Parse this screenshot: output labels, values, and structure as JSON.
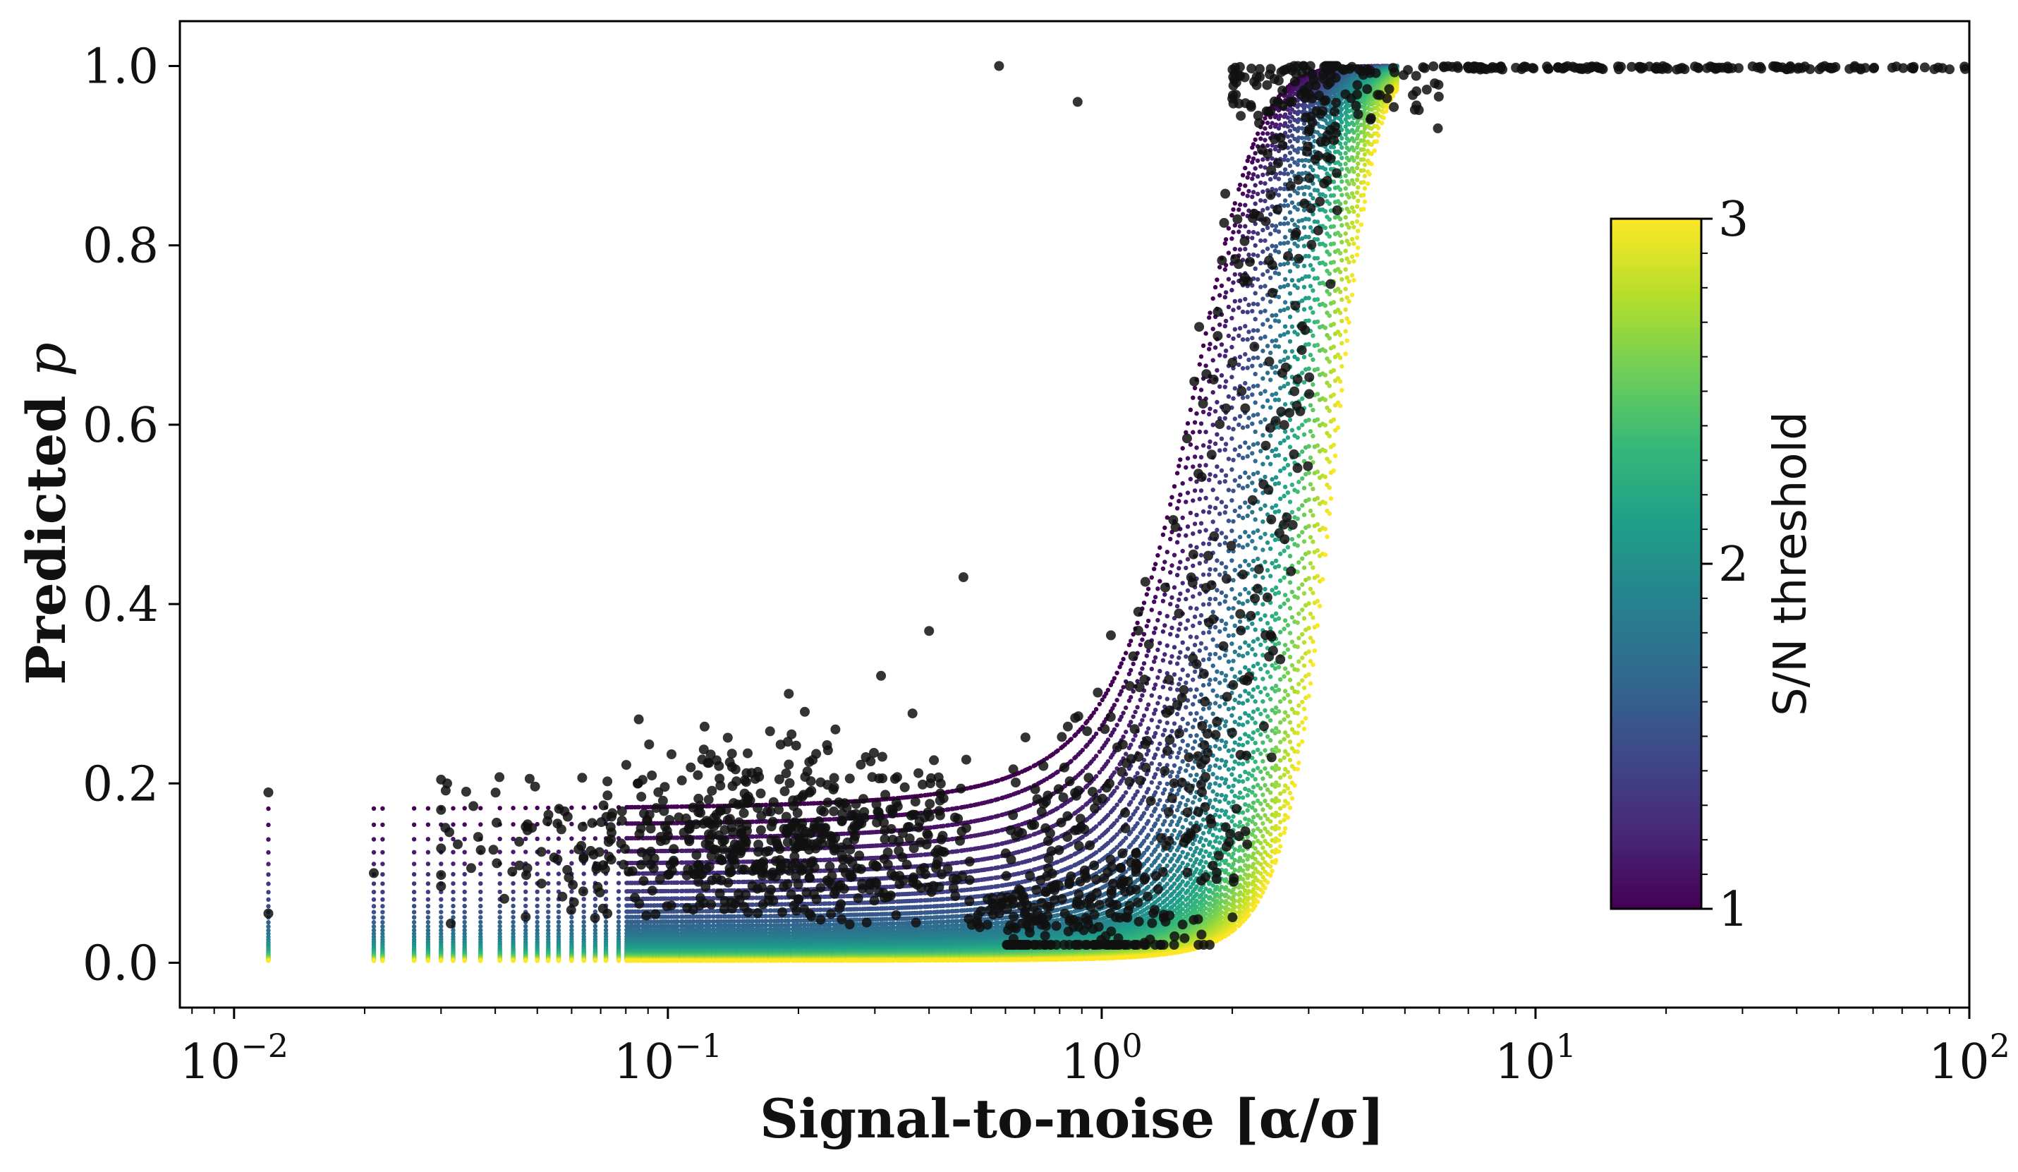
{
  "chart_data": {
    "type": "scatter",
    "title": "",
    "xlabel": "Signal-to-noise [α/σ]",
    "ylabel_main": "Predicted",
    "ylabel_var": "p",
    "xscale": "log",
    "xlim": [
      0.0075,
      100
    ],
    "ylim": [
      -0.05,
      1.05
    ],
    "grid": false,
    "x_ticks": [
      {
        "value": 0.01,
        "base": "10",
        "exp": "−2"
      },
      {
        "value": 0.1,
        "base": "10",
        "exp": "−1"
      },
      {
        "value": 1,
        "base": "10",
        "exp": "0"
      },
      {
        "value": 10,
        "base": "10",
        "exp": "1"
      },
      {
        "value": 100,
        "base": "10",
        "exp": "2"
      }
    ],
    "y_ticks": [
      "0.0",
      "0.2",
      "0.4",
      "0.6",
      "0.8",
      "1.0"
    ],
    "y_tick_values": [
      0.0,
      0.2,
      0.4,
      0.6,
      0.8,
      1.0
    ],
    "model_curves": {
      "description": "Predicted p versus S/N for a range of S/N thresholds",
      "threshold_min": 1,
      "threshold_max": 3,
      "n_curves": 40,
      "p_floor_at_min_threshold": 0.165,
      "p_floor_at_max_threshold": 0.002,
      "half_point_sn_at_min_threshold": 1.55,
      "half_point_sn_at_max_threshold": 3.35
    },
    "observed_points": {
      "color": "#111111",
      "count": 1400,
      "notable_points": [
        {
          "x": 0.012,
          "y": 0.19
        },
        {
          "x": 0.012,
          "y": 0.055
        },
        {
          "x": 0.021,
          "y": 0.1
        },
        {
          "x": 0.031,
          "y": 0.2
        },
        {
          "x": 0.58,
          "y": 1.0
        },
        {
          "x": 0.88,
          "y": 0.96
        },
        {
          "x": 0.4,
          "y": 0.37
        },
        {
          "x": 0.31,
          "y": 0.32
        },
        {
          "x": 0.19,
          "y": 0.3
        },
        {
          "x": 0.48,
          "y": 0.43
        },
        {
          "x": 0.73,
          "y": 0.05
        },
        {
          "x": 0.92,
          "y": 0.05
        }
      ]
    },
    "colorbar": {
      "label": "S/N threshold",
      "ticks": [
        "1",
        "2",
        "3"
      ],
      "tick_values": [
        1,
        2,
        3
      ],
      "range": [
        1,
        3
      ],
      "colormap": "viridis",
      "colors": [
        "#440154",
        "#482878",
        "#3e4989",
        "#31688e",
        "#26828e",
        "#1f9e89",
        "#35b779",
        "#6ece58",
        "#b5de2b",
        "#fde725"
      ]
    },
    "legend": "none"
  }
}
